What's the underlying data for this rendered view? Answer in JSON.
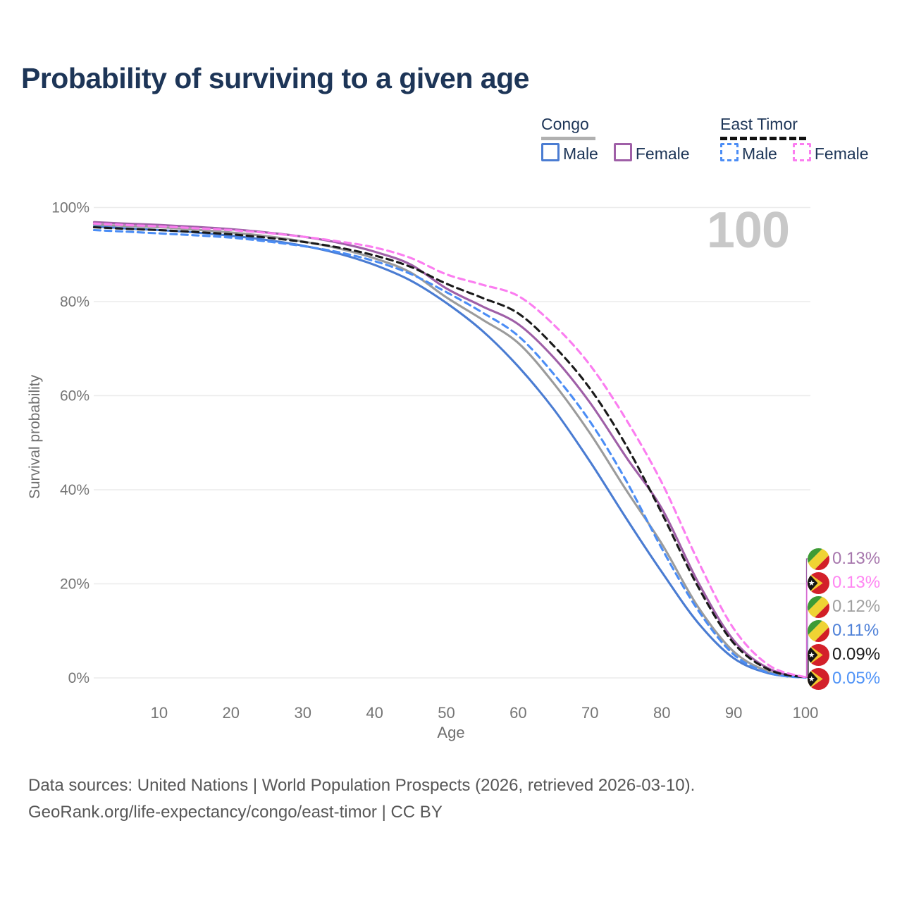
{
  "title": "Probability of surviving to a given age",
  "watermark": "100",
  "legend": {
    "position": "top-right",
    "groups": [
      {
        "name": "Congo",
        "line_style": "solid",
        "underline_color": "#b0b0b0",
        "items": [
          {
            "label": "Male",
            "color": "#4a7cd2",
            "dashed": false
          },
          {
            "label": "Female",
            "color": "#9f5fa7",
            "dashed": false
          }
        ]
      },
      {
        "name": "East Timor",
        "line_style": "dashed",
        "underline_color": "#111111",
        "items": [
          {
            "label": "Male",
            "color": "#4b8df5",
            "dashed": true
          },
          {
            "label": "Female",
            "color": "#fb7df0",
            "dashed": true
          }
        ]
      }
    ]
  },
  "chart_data": {
    "type": "line",
    "title": "Probability of surviving to a given age",
    "xlabel": "Age",
    "ylabel": "Survival probability",
    "xlim": [
      0,
      100
    ],
    "ylim": [
      0,
      100
    ],
    "grid": true,
    "x_ticks": [
      "10",
      "20",
      "30",
      "40",
      "50",
      "60",
      "70",
      "80",
      "90",
      "100"
    ],
    "x_tick_values": [
      10,
      20,
      30,
      40,
      50,
      60,
      70,
      80,
      90,
      100
    ],
    "y_ticks": [
      "0%",
      "20%",
      "40%",
      "60%",
      "80%",
      "100%"
    ],
    "y_tick_values": [
      0,
      20,
      40,
      60,
      80,
      100
    ],
    "x": [
      0,
      5,
      10,
      15,
      20,
      25,
      30,
      35,
      40,
      45,
      50,
      55,
      60,
      65,
      70,
      75,
      80,
      85,
      90,
      95,
      100
    ],
    "series": [
      {
        "name": "Congo Male",
        "country": "Congo",
        "sex": "Male",
        "color": "#4a7cd2",
        "dashed": false,
        "flag": "congo",
        "end_label": "0.11%",
        "label_color": "#4f81d8",
        "label_row": 3,
        "values": [
          96.0,
          95.6,
          95.2,
          94.7,
          94.0,
          93.1,
          91.9,
          90.2,
          87.8,
          84.5,
          79.7,
          73.8,
          66.2,
          57.0,
          46.0,
          34.0,
          22.5,
          11.8,
          4.2,
          0.95,
          0.11
        ]
      },
      {
        "name": "Congo Both sexes",
        "country": "Congo",
        "sex": "Both",
        "color": "#9b9b9b",
        "dashed": false,
        "flag": "congo",
        "end_label": "0.12%",
        "label_color": "#a0a0a0",
        "label_row": 2,
        "values": [
          96.4,
          96.1,
          95.8,
          95.3,
          94.7,
          93.9,
          92.8,
          91.3,
          89.2,
          86.2,
          80.9,
          76.2,
          71.2,
          62.5,
          52.0,
          40.0,
          28.5,
          15.2,
          5.6,
          1.3,
          0.12
        ]
      },
      {
        "name": "Congo Female",
        "country": "Congo",
        "sex": "Female",
        "color": "#9f5fa7",
        "dashed": false,
        "flag": "congo",
        "end_label": "0.13%",
        "label_color": "#a777ad",
        "label_row": 0,
        "values": [
          96.9,
          96.6,
          96.3,
          95.9,
          95.4,
          94.7,
          93.8,
          92.5,
          90.6,
          87.9,
          82.8,
          79.0,
          75.2,
          68.0,
          58.5,
          47.0,
          36.0,
          20.5,
          8.0,
          1.9,
          0.13
        ]
      },
      {
        "name": "East Timor Male",
        "country": "East Timor",
        "sex": "Male",
        "color": "#4b8df5",
        "dashed": true,
        "flag": "east-timor",
        "end_label": "0.05%",
        "label_color": "#4f93f7",
        "label_row": 5,
        "values": [
          95.2,
          94.9,
          94.5,
          94.1,
          93.6,
          92.8,
          91.8,
          90.5,
          88.6,
          85.9,
          82.0,
          77.7,
          72.7,
          64.5,
          54.5,
          42.0,
          27.5,
          14.5,
          5.0,
          1.0,
          0.05
        ]
      },
      {
        "name": "East Timor Both sexes",
        "country": "East Timor",
        "sex": "Both",
        "color": "#1a1a1a",
        "dashed": true,
        "flag": "east-timor",
        "end_label": "0.09%",
        "label_color": "#1a1a1a",
        "label_row": 4,
        "values": [
          95.8,
          95.5,
          95.2,
          94.8,
          94.3,
          93.6,
          92.7,
          91.5,
          89.8,
          87.4,
          83.8,
          80.8,
          77.5,
          70.5,
          61.5,
          49.5,
          35.0,
          19.5,
          7.4,
          1.7,
          0.09
        ]
      },
      {
        "name": "East Timor Female",
        "country": "East Timor",
        "sex": "Female",
        "color": "#fb7df0",
        "dashed": true,
        "flag": "east-timor",
        "end_label": "0.13%",
        "label_color": "#ff86f2",
        "label_row": 1,
        "values": [
          96.6,
          96.3,
          96.0,
          95.6,
          95.2,
          94.6,
          93.8,
          92.8,
          91.5,
          89.3,
          85.8,
          83.6,
          81.2,
          75.0,
          66.5,
          55.0,
          41.5,
          25.0,
          10.5,
          2.6,
          0.13
        ]
      }
    ]
  },
  "flags": {
    "congo": {
      "green": "#3d9b35",
      "yellow": "#efd334",
      "red": "#d21f26"
    },
    "east_timor": {
      "red": "#d3202a",
      "yellow": "#f1c72e",
      "black": "#141414",
      "star": "#ffffff"
    }
  },
  "footer": {
    "line1": "Data sources: United Nations | World Population Prospects (2026, retrieved 2026-03-10).",
    "line2": "GeoRank.org/life-expectancy/congo/east-timor | CC BY"
  }
}
